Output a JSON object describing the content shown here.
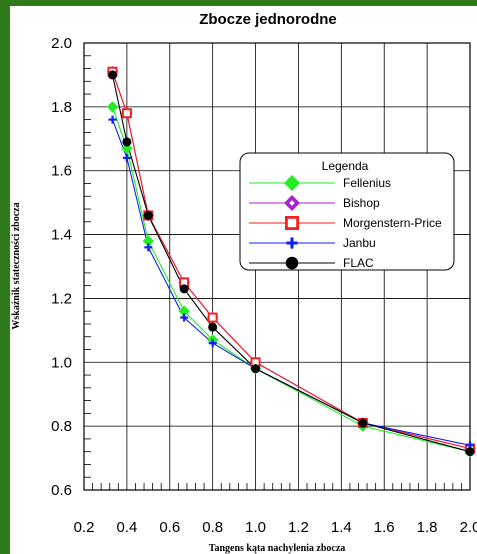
{
  "chart_data": {
    "type": "line",
    "title": "Zbocze jednorodne",
    "xlabel": "Tangens kąta nachylenia zbocza",
    "ylabel": "Wskaźnik stateczności zbocza",
    "xlim": [
      0.2,
      2.0
    ],
    "ylim": [
      0.6,
      2.0
    ],
    "x_ticks": [
      "0.2",
      "0.4",
      "0.6",
      "0.8",
      "1.0",
      "1.2",
      "1.4",
      "1.6",
      "1.8",
      "2.0"
    ],
    "y_ticks": [
      "0.6",
      "0.8",
      "1.0",
      "1.2",
      "1.4",
      "1.6",
      "1.8",
      "2.0"
    ],
    "grid": true,
    "legend_title": "Legenda",
    "legend_position": "right",
    "series": [
      {
        "name": "Fellenius",
        "color": "#22ee22",
        "marker": "diamond-filled",
        "x": [
          0.333,
          0.4,
          0.5,
          0.667,
          0.8,
          1.0,
          1.5,
          2.0
        ],
        "y": [
          1.8,
          1.67,
          1.38,
          1.16,
          1.07,
          0.98,
          0.8,
          0.72
        ]
      },
      {
        "name": "Bishop",
        "color": "#aa22cc",
        "marker": "diamond-open",
        "x": [
          0.333,
          0.4,
          0.5,
          0.667,
          0.8,
          1.0,
          1.5,
          2.0
        ],
        "y": [
          1.91,
          1.78,
          1.46,
          1.25,
          1.14,
          1.0,
          0.81,
          0.73
        ]
      },
      {
        "name": "Morgenstern-Price",
        "color": "#ee2222",
        "marker": "square-open",
        "x": [
          0.333,
          0.4,
          0.5,
          0.667,
          0.8,
          1.0,
          1.5,
          2.0
        ],
        "y": [
          1.91,
          1.78,
          1.46,
          1.25,
          1.14,
          1.0,
          0.81,
          0.73
        ]
      },
      {
        "name": "Janbu",
        "color": "#1122ee",
        "marker": "plus",
        "x": [
          0.333,
          0.4,
          0.5,
          0.667,
          0.8,
          1.0,
          1.5,
          2.0
        ],
        "y": [
          1.76,
          1.64,
          1.36,
          1.14,
          1.06,
          0.98,
          0.81,
          0.74
        ]
      },
      {
        "name": "FLAC",
        "color": "#000000",
        "marker": "circle-filled",
        "x": [
          0.333,
          0.4,
          0.5,
          0.667,
          0.8,
          1.0,
          1.5,
          2.0
        ],
        "y": [
          1.9,
          1.69,
          1.46,
          1.23,
          1.11,
          0.98,
          0.81,
          0.72
        ]
      }
    ]
  }
}
